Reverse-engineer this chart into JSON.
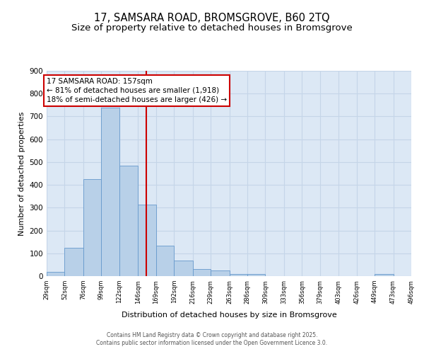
{
  "title": "17, SAMSARA ROAD, BROMSGROVE, B60 2TQ",
  "subtitle": "Size of property relative to detached houses in Bromsgrove",
  "xlabel": "Distribution of detached houses by size in Bromsgrove",
  "ylabel": "Number of detached properties",
  "bar_values": [
    20,
    125,
    425,
    740,
    485,
    315,
    135,
    67,
    30,
    25,
    10,
    8,
    0,
    0,
    0,
    0,
    0,
    0,
    9,
    0
  ],
  "bin_edges": [
    29,
    52,
    76,
    99,
    122,
    146,
    169,
    192,
    216,
    239,
    263,
    286,
    309,
    333,
    356,
    379,
    403,
    426,
    449,
    473,
    496
  ],
  "tick_labels": [
    "29sqm",
    "52sqm",
    "76sqm",
    "99sqm",
    "122sqm",
    "146sqm",
    "169sqm",
    "192sqm",
    "216sqm",
    "239sqm",
    "263sqm",
    "286sqm",
    "309sqm",
    "333sqm",
    "356sqm",
    "379sqm",
    "403sqm",
    "426sqm",
    "449sqm",
    "473sqm",
    "496sqm"
  ],
  "bar_color": "#b8d0e8",
  "bar_edge_color": "#6699cc",
  "vline_x": 157,
  "vline_color": "#cc0000",
  "annotation_text": "17 SAMSARA ROAD: 157sqm\n← 81% of detached houses are smaller (1,918)\n18% of semi-detached houses are larger (426) →",
  "annotation_box_color": "#cc0000",
  "ylim": [
    0,
    900
  ],
  "yticks": [
    0,
    100,
    200,
    300,
    400,
    500,
    600,
    700,
    800,
    900
  ],
  "ax_bg_color": "#dce8f5",
  "background_color": "#ffffff",
  "grid_color": "#c5d5e8",
  "footer_line1": "Contains HM Land Registry data © Crown copyright and database right 2025.",
  "footer_line2": "Contains public sector information licensed under the Open Government Licence 3.0.",
  "title_fontsize": 10.5,
  "subtitle_fontsize": 9.5
}
